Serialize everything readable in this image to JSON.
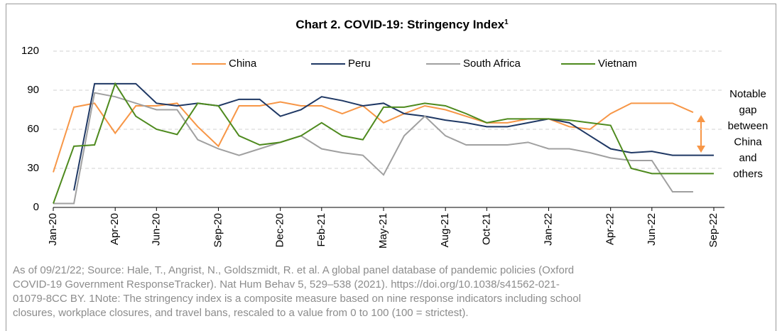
{
  "chart_data": {
    "type": "line",
    "title": "Chart 2. COVID-19: Stringency Index",
    "title_superscript": "1",
    "categories": [
      "Jan-20",
      null,
      null,
      "Apr-20",
      null,
      "Jun-20",
      null,
      null,
      "Sep-20",
      null,
      null,
      "Dec-20",
      null,
      "Feb-21",
      null,
      null,
      "May-21",
      null,
      null,
      "Aug-21",
      null,
      "Oct-21",
      null,
      null,
      "Jan-22",
      null,
      null,
      "Apr-22",
      null,
      "Jun-22",
      null,
      null,
      "Sep-22"
    ],
    "series": [
      {
        "name": "China",
        "color": "#f79646",
        "values": [
          27,
          77,
          80,
          57,
          78,
          78,
          80,
          62,
          47,
          78,
          78,
          81,
          78,
          78,
          72,
          78,
          65,
          72,
          78,
          75,
          70,
          65,
          65,
          68,
          68,
          62,
          60,
          72,
          80,
          80,
          80,
          73,
          null
        ]
      },
      {
        "name": "Peru",
        "color": "#1f3864",
        "values": [
          null,
          13,
          95,
          95,
          95,
          80,
          78,
          80,
          78,
          83,
          83,
          70,
          75,
          85,
          82,
          78,
          80,
          72,
          70,
          67,
          65,
          62,
          62,
          65,
          68,
          65,
          55,
          45,
          42,
          43,
          40,
          40,
          40
        ]
      },
      {
        "name": "South Africa",
        "color": "#a0a0a0",
        "values": [
          3,
          3,
          88,
          85,
          80,
          75,
          75,
          52,
          45,
          40,
          45,
          50,
          55,
          45,
          42,
          40,
          25,
          55,
          70,
          55,
          48,
          48,
          48,
          50,
          45,
          45,
          42,
          38,
          36,
          36,
          12,
          12,
          null
        ]
      },
      {
        "name": "Vietnam",
        "color": "#4e8a1e",
        "values": [
          3,
          47,
          48,
          95,
          70,
          60,
          56,
          80,
          78,
          55,
          48,
          50,
          55,
          65,
          55,
          52,
          77,
          77,
          80,
          78,
          72,
          65,
          68,
          68,
          68,
          67,
          65,
          63,
          30,
          26,
          26,
          26,
          26
        ]
      }
    ],
    "ylim": [
      0,
      120
    ],
    "yticks": [
      0,
      30,
      60,
      90,
      120
    ],
    "grid": true,
    "legend": "top",
    "annotation": [
      "Notable",
      "gap",
      "between",
      "China",
      "and",
      "others"
    ],
    "footnote": [
      "As of 09/21/22; Source: Hale, T., Angrist, N., Goldszmidt, R. et al. A global panel database of pandemic policies (Oxford",
      "COVID-19 Government ResponseTracker). Nat Hum Behav 5, 529–538 (2021). https://doi.org/10.1038/s41562-021-",
      "01079-8CC BY. 1Note: The stringency index is a composite measure based on nine response indicators including school",
      "closures, workplace closures, and travel bans, rescaled to a value from 0 to 100 (100 = strictest)."
    ]
  }
}
